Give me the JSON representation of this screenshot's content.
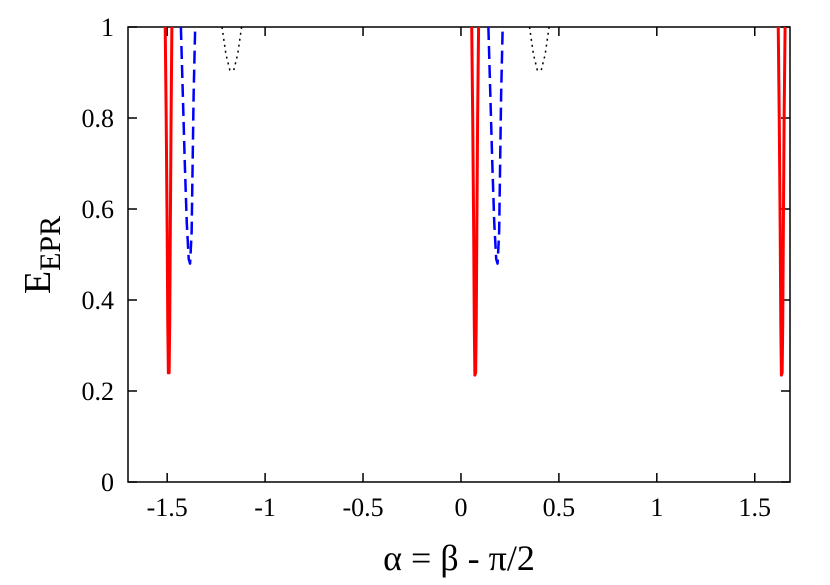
{
  "chart_data": {
    "type": "line",
    "title": "",
    "xlabel": "α = β - π/2",
    "ylabel": {
      "main": "E",
      "sub": "EPR"
    },
    "xlim": [
      -1.7,
      1.68
    ],
    "ylim": [
      0,
      1
    ],
    "grid": false,
    "legend": "none",
    "x_ticks": [
      -1.5,
      -1,
      -0.5,
      0,
      0.5,
      1,
      1.5
    ],
    "x_tick_labels": [
      "-1.5",
      "-1",
      "-0.5",
      "0",
      "0.5",
      "1",
      "1.5"
    ],
    "y_ticks": [
      0,
      0.2,
      0.4,
      0.6,
      0.8,
      1
    ],
    "y_tick_labels": [
      "0",
      "0.2",
      "0.4",
      "0.6",
      "0.8",
      "1"
    ],
    "series": [
      {
        "style": "solid",
        "color": "#ff0000",
        "segments": [
          [
            [
              -1.51,
              1.0
            ],
            [
              -1.505,
              0.8
            ],
            [
              -1.5,
              0.55
            ],
            [
              -1.497,
              0.35
            ],
            [
              -1.494,
              0.24
            ],
            [
              -1.49,
              0.24
            ],
            [
              -1.487,
              0.35
            ],
            [
              -1.484,
              0.55
            ],
            [
              -1.48,
              0.8
            ],
            [
              -1.476,
              1.0
            ]
          ],
          [
            [
              0.055,
              1.0
            ],
            [
              0.06,
              0.8
            ],
            [
              0.065,
              0.55
            ],
            [
              0.068,
              0.35
            ],
            [
              0.071,
              0.235
            ],
            [
              0.075,
              0.24
            ],
            [
              0.078,
              0.35
            ],
            [
              0.081,
              0.55
            ],
            [
              0.085,
              0.8
            ],
            [
              0.09,
              1.0
            ]
          ],
          [
            [
              1.62,
              1.0
            ],
            [
              1.625,
              0.8
            ],
            [
              1.63,
              0.55
            ],
            [
              1.633,
              0.35
            ],
            [
              1.636,
              0.235
            ],
            [
              1.64,
              0.24
            ],
            [
              1.643,
              0.35
            ],
            [
              1.646,
              0.55
            ],
            [
              1.65,
              0.8
            ],
            [
              1.655,
              1.0
            ]
          ]
        ]
      },
      {
        "style": "dashed",
        "color": "#0000ff",
        "segments": [
          [
            [
              -1.43,
              1.0
            ],
            [
              -1.42,
              0.85
            ],
            [
              -1.41,
              0.7
            ],
            [
              -1.4,
              0.57
            ],
            [
              -1.39,
              0.49
            ],
            [
              -1.383,
              0.48
            ],
            [
              -1.375,
              0.55
            ],
            [
              -1.37,
              0.7
            ],
            [
              -1.365,
              0.85
            ],
            [
              -1.357,
              1.0
            ]
          ],
          [
            [
              0.14,
              1.0
            ],
            [
              0.15,
              0.85
            ],
            [
              0.16,
              0.7
            ],
            [
              0.17,
              0.57
            ],
            [
              0.18,
              0.49
            ],
            [
              0.187,
              0.48
            ],
            [
              0.195,
              0.55
            ],
            [
              0.2,
              0.7
            ],
            [
              0.205,
              0.85
            ],
            [
              0.213,
              1.0
            ]
          ]
        ]
      },
      {
        "style": "dotted",
        "color": "#000000",
        "segments": [
          [
            [
              -1.22,
              1.0
            ],
            [
              -1.2,
              0.94
            ],
            [
              -1.18,
              0.905
            ],
            [
              -1.16,
              0.905
            ],
            [
              -1.14,
              0.94
            ],
            [
              -1.12,
              1.0
            ]
          ],
          [
            [
              0.35,
              1.0
            ],
            [
              0.37,
              0.94
            ],
            [
              0.39,
              0.905
            ],
            [
              0.41,
              0.905
            ],
            [
              0.43,
              0.94
            ],
            [
              0.45,
              1.0
            ]
          ]
        ]
      }
    ]
  }
}
